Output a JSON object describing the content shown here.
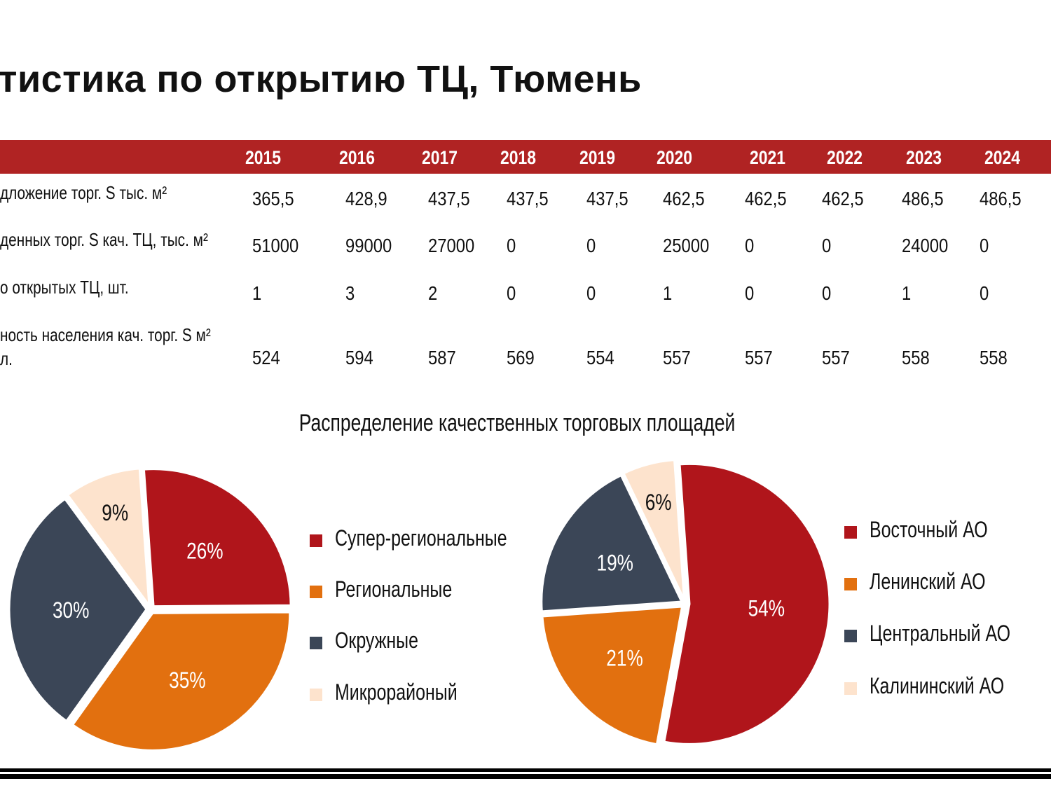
{
  "title": "тистика по открытию ТЦ, Тюмень",
  "table": {
    "years": [
      "2015",
      "2016",
      "2017",
      "2018",
      "2019",
      "2020",
      "2021",
      "2022",
      "2023",
      "2024"
    ],
    "rows": [
      {
        "label": [
          "дложение торг. S тыс. м²"
        ],
        "values": [
          "365,5",
          "428,9",
          "437,5",
          "437,5",
          "437,5",
          "462,5",
          "462,5",
          "462,5",
          "486,5",
          "486,5"
        ]
      },
      {
        "label": [
          "денных торг. S кач. ТЦ, тыс. м²"
        ],
        "values": [
          "51000",
          "99000",
          "27000",
          "0",
          "0",
          "25000",
          "0",
          "0",
          "24000",
          "0"
        ]
      },
      {
        "label": [
          "о открытых ТЦ, шт."
        ],
        "values": [
          "1",
          "3",
          "2",
          "0",
          "0",
          "1",
          "0",
          "0",
          "1",
          "0"
        ]
      },
      {
        "label": [
          "ность населения кач. торг. S м²",
          "л."
        ],
        "values": [
          "524",
          "594",
          "587",
          "569",
          "554",
          "557",
          "557",
          "557",
          "558",
          "558"
        ]
      }
    ]
  },
  "chart_data": [
    {
      "type": "pie",
      "title": "Распределение качественных торговых площадей",
      "categories": [
        "Супер-региональные",
        "Региональные",
        "Окружные",
        "Микрорайоный"
      ],
      "values": [
        26,
        35,
        30,
        9
      ],
      "labels": [
        "26%",
        "35%",
        "30%",
        "9%"
      ],
      "colors": [
        "#b0151b",
        "#e2700f",
        "#3b4657",
        "#fde3cd"
      ],
      "legend": "right"
    },
    {
      "type": "pie",
      "title": "Распределение качественных торговых площадей",
      "categories": [
        "Восточный АО",
        "Ленинский АО",
        "Центральный АО",
        "Калининский АО"
      ],
      "values": [
        54,
        21,
        19,
        6
      ],
      "labels": [
        "54%",
        "21%",
        "19%",
        "6%"
      ],
      "colors": [
        "#b0151b",
        "#e2700f",
        "#3b4657",
        "#fde3cd"
      ],
      "legend": "right"
    }
  ]
}
